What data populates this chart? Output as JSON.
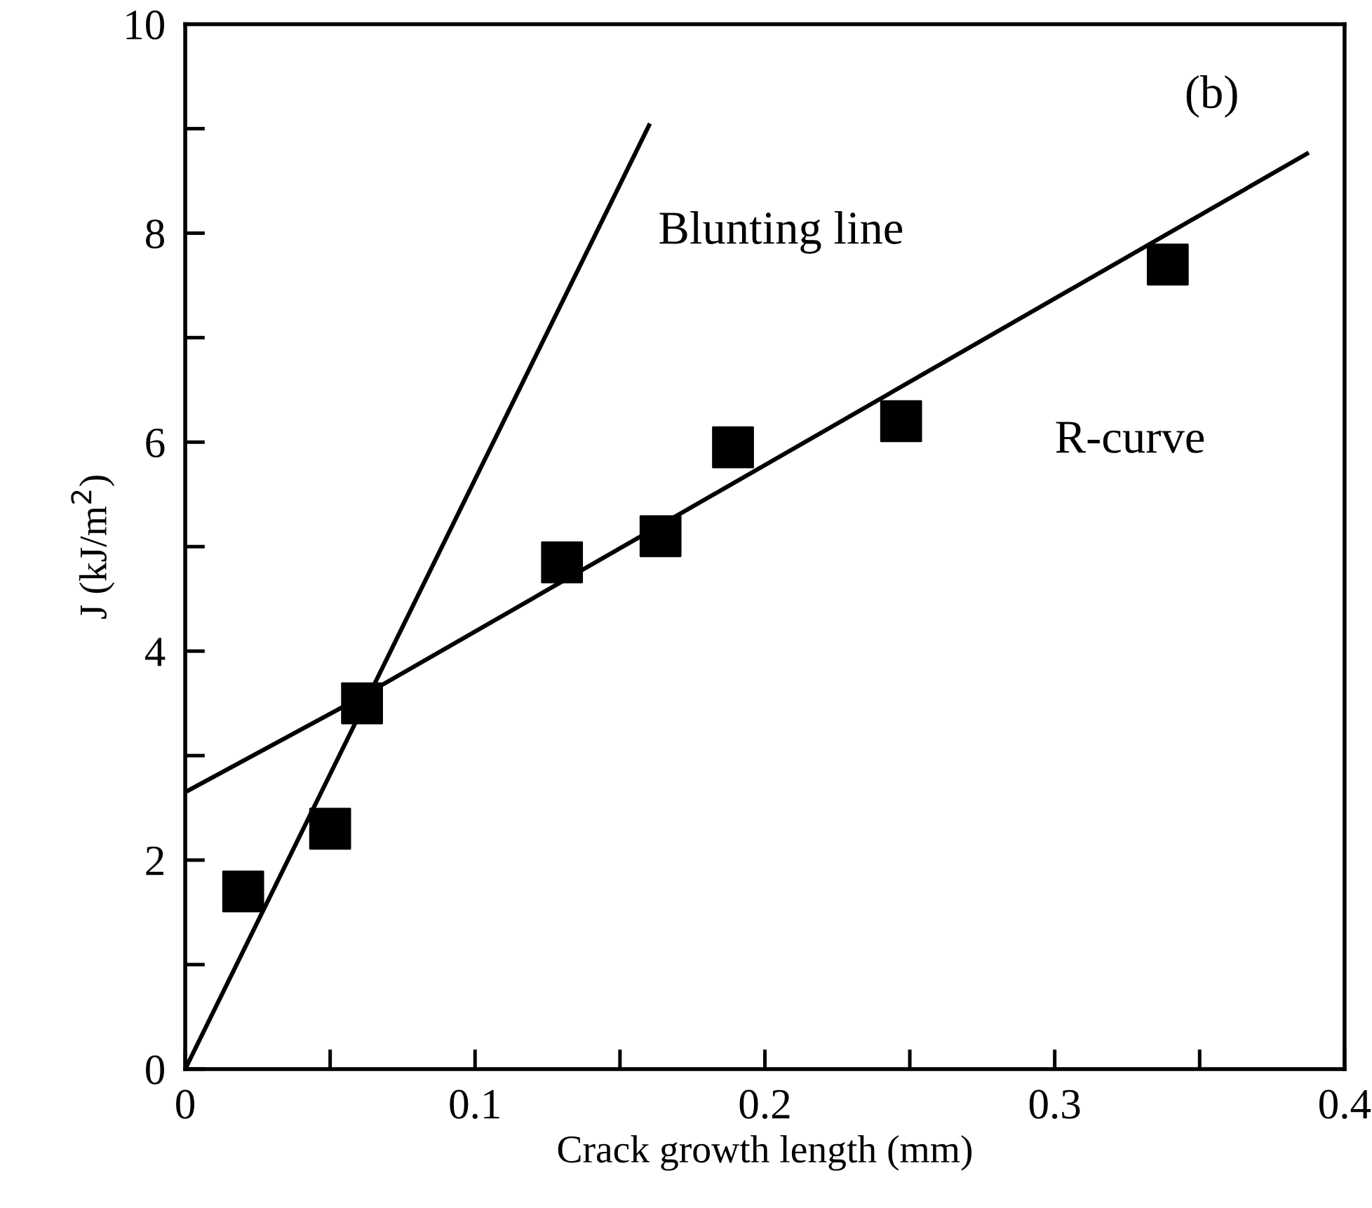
{
  "chart_data": {
    "type": "scatter",
    "xlabel": "Crack growth length (mm)",
    "ylabel": "J (kJ/m$^{2}$)",
    "xlim": [
      0,
      0.4
    ],
    "ylim": [
      0,
      10
    ],
    "xticks": [
      0,
      {
        "value": 0.05,
        "label": null
      },
      0.1,
      {
        "value": 0.15,
        "label": null
      },
      0.2,
      {
        "value": 0.25,
        "label": null
      },
      0.3,
      {
        "value": 0.35,
        "label": null
      },
      0.4
    ],
    "yticks": [
      0,
      {
        "value": 1,
        "label": null
      },
      2,
      {
        "value": 3,
        "label": null
      },
      4,
      {
        "value": 5,
        "label": null
      },
      6,
      {
        "value": 7,
        "label": null
      },
      8,
      {
        "value": 9,
        "label": null
      },
      10
    ],
    "grid": false,
    "legend": false,
    "series": [
      {
        "color": "#000000",
        "marker": "square",
        "x": [
          0.02,
          0.05,
          0.061,
          0.13,
          0.164,
          0.189,
          0.247,
          0.339
        ],
        "values": [
          1.7,
          2.3,
          3.5,
          4.85,
          5.1,
          5.95,
          6.2,
          7.7
        ]
      },
      {
        "type": "line",
        "color": "#000000",
        "marker": "none",
        "line_style": "solid",
        "x": [
          0,
          0.16
        ],
        "values": [
          0,
          9.03
        ]
      },
      {
        "type": "line",
        "color": "#000000",
        "marker": "none",
        "line_style": "solid",
        "x": [
          0,
          0.06,
          0.387
        ],
        "values": [
          2.65,
          3.55,
          8.76
        ]
      }
    ],
    "annotations": [
      "(b)",
      "Blunting line",
      "R-curve"
    ]
  }
}
